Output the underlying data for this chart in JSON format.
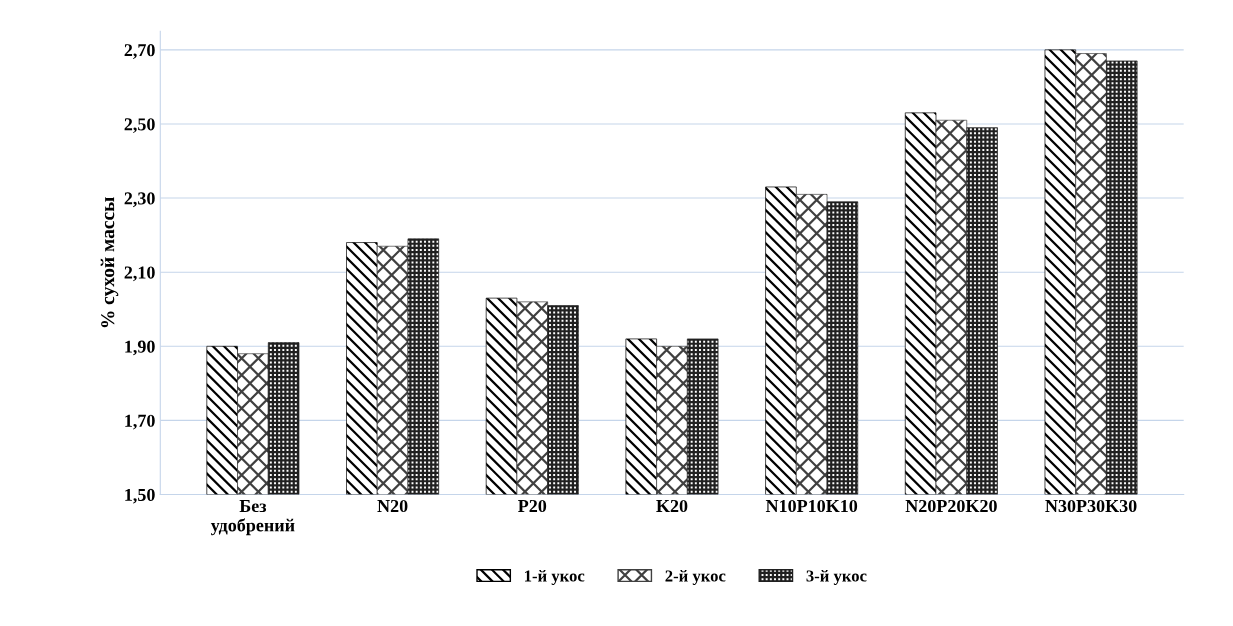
{
  "chart_data": {
    "type": "bar",
    "categories": [
      "Без\nудобрений",
      "N20",
      "P20",
      "K20",
      "N10P10K10",
      "N20P20K20",
      "N30P30K30"
    ],
    "series": [
      {
        "name": "1-й укос",
        "color": "#000000",
        "values": [
          1.9,
          2.18,
          2.03,
          1.92,
          2.33,
          2.53,
          2.7
        ]
      },
      {
        "name": "2-й укос",
        "color": "#404040",
        "values": [
          1.88,
          2.17,
          2.02,
          1.9,
          2.31,
          2.51,
          2.69
        ]
      },
      {
        "name": "3-й укос",
        "color": "#202020",
        "values": [
          1.91,
          2.19,
          2.01,
          1.92,
          2.29,
          2.49,
          2.67
        ]
      }
    ],
    "ylabel": "% сухой массы",
    "ylim": [
      1.5,
      2.75
    ],
    "yticks": [
      {
        "value": 1.5,
        "label": "1,50"
      },
      {
        "value": 1.7,
        "label": "1,70"
      },
      {
        "value": 1.9,
        "label": "1,90"
      },
      {
        "value": 2.1,
        "label": "2,10"
      },
      {
        "value": 2.3,
        "label": "2,30"
      },
      {
        "value": 2.5,
        "label": "2,50"
      },
      {
        "value": 2.7,
        "label": "2,70"
      }
    ],
    "grid": "y",
    "legend": "bottom"
  }
}
